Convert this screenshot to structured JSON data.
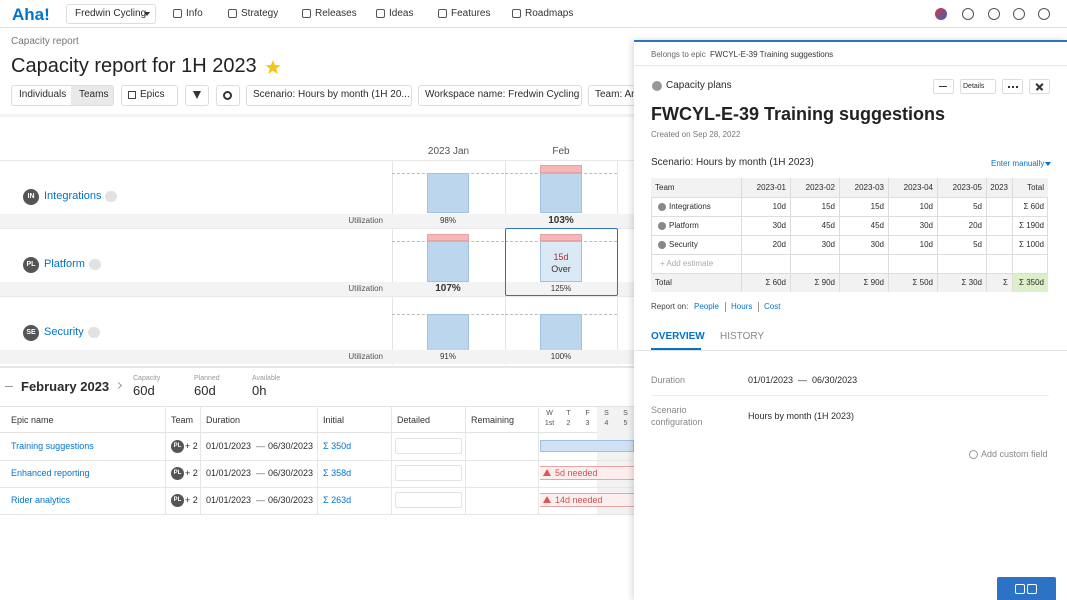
{
  "nav": {
    "logo": "Aha!",
    "workspace": "Fredwin Cycling",
    "items": [
      "Info",
      "Strategy",
      "Releases",
      "Ideas",
      "Features",
      "Roadmaps"
    ]
  },
  "report": {
    "breadcrumb": "Capacity report",
    "title": "Capacity report for 1H 2023",
    "toggle": [
      "Individuals",
      "Teams"
    ],
    "epics": "Epics",
    "filters": [
      "Scenario: Hours by month (1H 20...",
      "Workspace name: Fredwin Cycling",
      "Team: An"
    ]
  },
  "chart": {
    "columns": [
      "2023 Jan",
      "Feb"
    ],
    "utilization_label": "Utilization",
    "rows": [
      {
        "initials": "IN",
        "name": "Integrations",
        "values": [
          "98%",
          "103%"
        ]
      },
      {
        "initials": "PL",
        "name": "Platform",
        "values": [
          "107%",
          "125%"
        ]
      },
      {
        "initials": "SE",
        "name": "Security",
        "values": [
          "91%",
          "100%"
        ]
      }
    ],
    "over": {
      "amount": "15d",
      "label": "Over"
    }
  },
  "month_panel": {
    "month": "February 2023",
    "stats": [
      {
        "label": "Capacity",
        "value": "60d"
      },
      {
        "label": "Planned",
        "value": "60d"
      },
      {
        "label": "Available",
        "value": "0h"
      }
    ]
  },
  "epic_table": {
    "headers": [
      "Epic name",
      "Team",
      "Duration",
      "Initial",
      "Detailed",
      "Remaining"
    ],
    "days": [
      {
        "dow": "W",
        "day": "1st"
      },
      {
        "dow": "T",
        "day": "2"
      },
      {
        "dow": "F",
        "day": "3"
      },
      {
        "dow": "S",
        "day": "4"
      },
      {
        "dow": "S",
        "day": "5"
      }
    ],
    "rows": [
      {
        "name": "Training suggestions",
        "team": "PL",
        "more": "+ 2",
        "start": "01/01/2023",
        "dash": "—",
        "end": "06/30/2023",
        "initial": "Σ 350d"
      },
      {
        "name": "Enhanced reporting",
        "team": "PL",
        "more": "+ 2",
        "start": "01/01/2023",
        "dash": "—",
        "end": "06/30/2023",
        "initial": "Σ 358d",
        "needed": "5d needed"
      },
      {
        "name": "Rider analytics",
        "team": "PL",
        "more": "+ 2",
        "start": "01/01/2023",
        "dash": "—",
        "end": "06/30/2023",
        "initial": "Σ 263d",
        "needed": "14d needed"
      }
    ]
  },
  "detail": {
    "belongs_label": "Belongs to epic",
    "belongs_epic": "FWCYL-E-39 Training suggestions",
    "section": "Capacity plans",
    "details_button": "Details",
    "title": "FWCYL-E-39 Training suggestions",
    "created": "Created on Sep 28, 2022",
    "scenario": "Scenario: Hours by month (1H 2023)",
    "enter_manually": "Enter manually",
    "table": {
      "headers": [
        "Team",
        "2023-01",
        "2023-02",
        "2023-03",
        "2023-04",
        "2023-05",
        "2023",
        "Total"
      ],
      "rows": [
        {
          "name": "Integrations",
          "cells": [
            "10d",
            "15d",
            "15d",
            "10d",
            "5d"
          ],
          "total": "Σ 60d"
        },
        {
          "name": "Platform",
          "cells": [
            "30d",
            "45d",
            "45d",
            "30d",
            "20d"
          ],
          "total": "Σ 190d"
        },
        {
          "name": "Security",
          "cells": [
            "20d",
            "30d",
            "30d",
            "10d",
            "5d"
          ],
          "total": "Σ 100d"
        }
      ],
      "add_estimate": "+ Add estimate",
      "total_row": {
        "label": "Total",
        "cells": [
          "Σ 60d",
          "Σ 90d",
          "Σ 90d",
          "Σ 50d",
          "Σ 30d",
          "Σ"
        ],
        "total": "Σ 350d"
      }
    },
    "report_on_label": "Report on:",
    "report_on": [
      "People",
      "Hours",
      "Cost"
    ],
    "tabs": [
      "OVERVIEW",
      "HISTORY"
    ],
    "fields": [
      {
        "label": "Duration",
        "value": "01/01/2023  —  06/30/2023"
      },
      {
        "label": "Scenario configuration",
        "value": "Hours by month (1H 2023)"
      }
    ],
    "add_field": "Add custom field"
  }
}
